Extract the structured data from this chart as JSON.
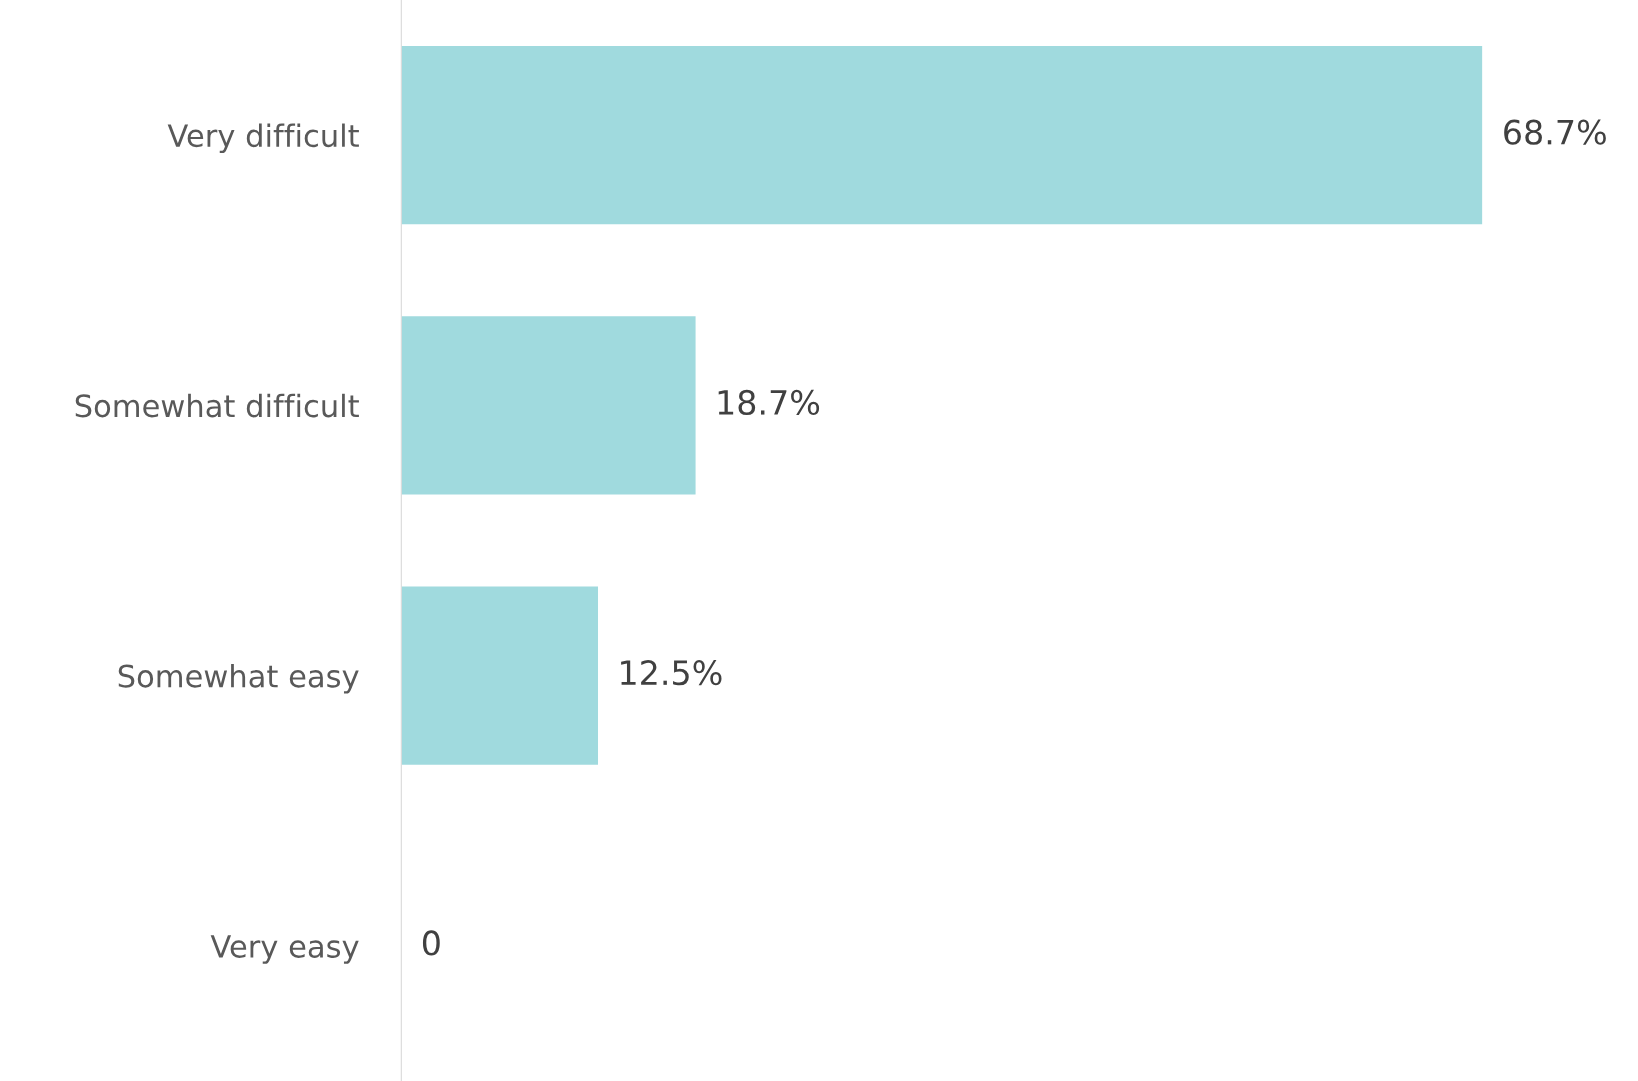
{
  "chart_data": {
    "type": "bar",
    "orientation": "horizontal",
    "categories": [
      "Very difficult",
      "Somewhat difficult",
      "Somewhat easy",
      "Very easy"
    ],
    "values": [
      68.7,
      18.7,
      12.5,
      0
    ],
    "value_labels": [
      "68.7%",
      "18.7%",
      "12.5%",
      "0"
    ],
    "color": "#a0dade",
    "grid": false,
    "legend": false
  }
}
